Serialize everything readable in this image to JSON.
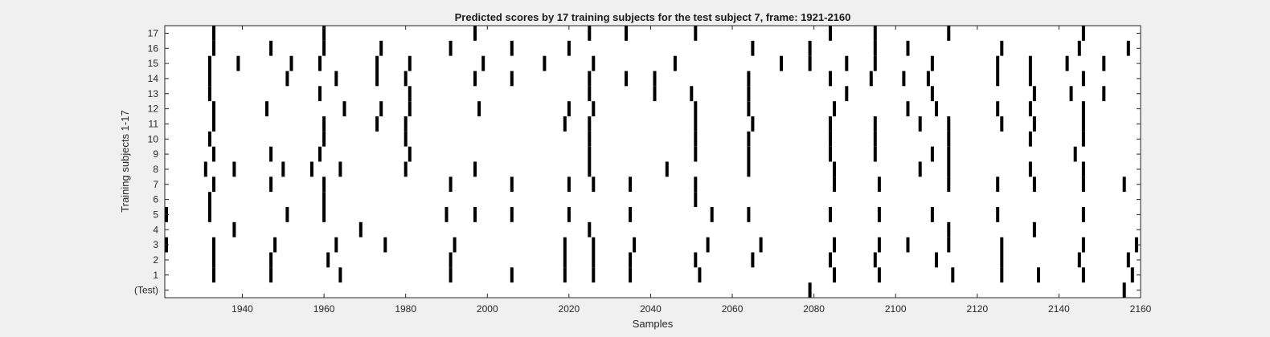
{
  "chart_data": {
    "type": "raster",
    "title": "Predicted scores by 17 training subjects for the test subject 7, frame: 1921-2160",
    "xlabel": "Samples",
    "ylabel": "Training subjects 1-17",
    "xlim": [
      1921,
      2160
    ],
    "x_ticks": [
      1940,
      1960,
      1980,
      2000,
      2020,
      2040,
      2060,
      2080,
      2100,
      2120,
      2140,
      2160
    ],
    "y_tick_labels": [
      "(Test)",
      "1",
      "2",
      "3",
      "4",
      "5",
      "6",
      "7",
      "8",
      "9",
      "10",
      "11",
      "12",
      "13",
      "14",
      "15",
      "16",
      "17"
    ],
    "grid": false,
    "legend": "none",
    "mark_color": "#000000",
    "rows": [
      {
        "label": "(Test)",
        "x": [
          2079,
          2156
        ]
      },
      {
        "label": "1",
        "x": [
          1933,
          1947,
          1964,
          1991,
          2006,
          2019,
          2026,
          2035,
          2052,
          2085,
          2096,
          2114,
          2126,
          2135,
          2146,
          2158
        ]
      },
      {
        "label": "2",
        "x": [
          1933,
          1947,
          1961,
          1991,
          2019,
          2026,
          2035,
          2051,
          2065,
          2084,
          2095,
          2110,
          2126,
          2145,
          2157
        ]
      },
      {
        "label": "3",
        "x": [
          1921,
          1933,
          1948,
          1963,
          1975,
          1992,
          2019,
          2026,
          2036,
          2054,
          2067,
          2085,
          2096,
          2103,
          2113,
          2126,
          2146,
          2159
        ]
      },
      {
        "label": "4",
        "x": [
          1938,
          1969,
          2025,
          2113,
          2134
        ]
      },
      {
        "label": "5",
        "x": [
          1921,
          1932,
          1951,
          1960,
          1990,
          1997,
          2006,
          2020,
          2035,
          2055,
          2064,
          2084,
          2096,
          2109,
          2125,
          2146
        ]
      },
      {
        "label": "6",
        "x": [
          1932,
          1960,
          2051
        ]
      },
      {
        "label": "7",
        "x": [
          1933,
          1947,
          1960,
          1991,
          2006,
          2020,
          2026,
          2035,
          2051,
          2085,
          2096,
          2113,
          2125,
          2134,
          2146,
          2156
        ]
      },
      {
        "label": "8",
        "x": [
          1931,
          1938,
          1950,
          1957,
          1964,
          1980,
          1997,
          2025,
          2044,
          2064,
          2085,
          2106,
          2113,
          2133,
          2146
        ]
      },
      {
        "label": "9",
        "x": [
          1933,
          1947,
          1959,
          1981,
          2025,
          2051,
          2064,
          2084,
          2095,
          2109,
          2113,
          2144
        ]
      },
      {
        "label": "10",
        "x": [
          1932,
          1960,
          1980,
          2025,
          2051,
          2064,
          2084,
          2095,
          2113,
          2133,
          2146
        ]
      },
      {
        "label": "11",
        "x": [
          1933,
          1960,
          1973,
          1980,
          2019,
          2025,
          2051,
          2065,
          2084,
          2095,
          2106,
          2113,
          2126,
          2134,
          2146
        ]
      },
      {
        "label": "12",
        "x": [
          1933,
          1946,
          1965,
          1974,
          1981,
          1998,
          2020,
          2026,
          2051,
          2064,
          2085,
          2103,
          2110,
          2125,
          2133,
          2146
        ]
      },
      {
        "label": "13",
        "x": [
          1932,
          1959,
          1981,
          2025,
          2041,
          2050,
          2064,
          2088,
          2109,
          2134,
          2143,
          2151
        ]
      },
      {
        "label": "14",
        "x": [
          1932,
          1951,
          1963,
          1973,
          1980,
          1997,
          2006,
          2025,
          2034,
          2041,
          2064,
          2084,
          2094,
          2102,
          2108,
          2125,
          2133,
          2146
        ]
      },
      {
        "label": "15",
        "x": [
          1932,
          1939,
          1952,
          1959,
          1973,
          1981,
          1999,
          2014,
          2026,
          2046,
          2072,
          2079,
          2088,
          2095,
          2109,
          2125,
          2133,
          2142,
          2151
        ]
      },
      {
        "label": "16",
        "x": [
          1933,
          1947,
          1960,
          1974,
          1991,
          2006,
          2020,
          2065,
          2079,
          2095,
          2103,
          2126,
          2145,
          2157
        ]
      },
      {
        "label": "17",
        "x": [
          1933,
          1960,
          1997,
          2025,
          2034,
          2051,
          2084,
          2095,
          2113,
          2146
        ]
      }
    ]
  }
}
